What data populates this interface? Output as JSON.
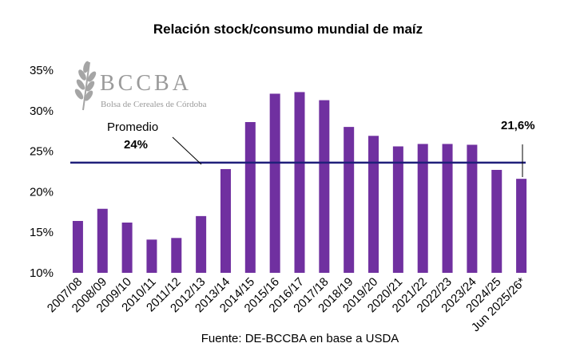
{
  "chart_data": {
    "type": "bar",
    "title": "Relación stock/consumo mundial de maíz",
    "source": "Fuente: DE-BCCBA en base a USDA",
    "categories": [
      "2007/08",
      "2008/09",
      "2009/10",
      "2010/11",
      "2011/12",
      "2012/13",
      "2013/14",
      "2014/15",
      "2015/16",
      "2016/17",
      "2017/18",
      "2018/19",
      "2019/20",
      "2020/21",
      "2021/22",
      "2022/23",
      "2023/24",
      "2024/25",
      "Jun 2025/26*"
    ],
    "values": [
      16.4,
      17.9,
      16.2,
      14.1,
      14.3,
      17.0,
      22.8,
      28.6,
      32.1,
      32.3,
      31.3,
      28.0,
      26.9,
      25.6,
      25.9,
      25.9,
      25.8,
      22.7,
      21.6
    ],
    "y_tick_labels": [
      "10%",
      "15%",
      "20%",
      "25%",
      "30%",
      "35%"
    ],
    "y_ticks": [
      10,
      15,
      20,
      25,
      30,
      35
    ],
    "ylim": [
      10,
      35
    ],
    "bar_color": "#7030a0",
    "average": {
      "label": "Promedio",
      "value_label": "24%",
      "value": 23.6,
      "color": "#1f1f7a"
    },
    "last_value_label": "21,6%",
    "xlabel": "",
    "ylabel": ""
  },
  "logo": {
    "name": "BCCBA",
    "subtitle": "Bolsa de Cereales de Córdoba",
    "icon": "wheat-icon"
  }
}
